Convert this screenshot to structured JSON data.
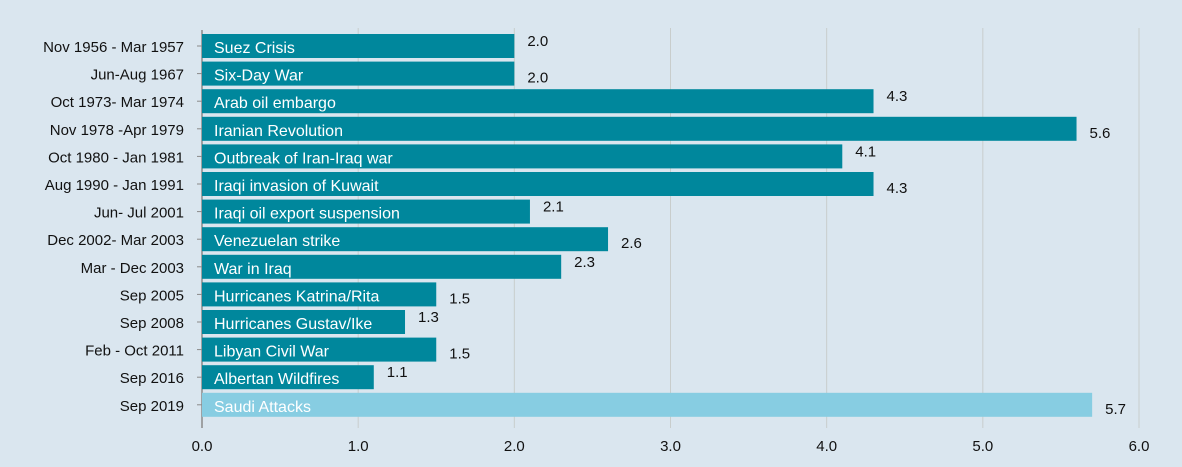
{
  "chart_data": {
    "type": "bar",
    "orientation": "horizontal",
    "categories": [
      "Nov 1956 - Mar 1957",
      "Jun-Aug 1967",
      "Oct 1973- Mar 1974",
      "Nov 1978 -Apr 1979",
      "Oct 1980 - Jan 1981",
      "Aug 1990 - Jan 1991",
      "Jun- Jul 2001",
      "Dec 2002- Mar 2003",
      "Mar - Dec 2003",
      "Sep 2005",
      "Sep 2008",
      "Feb - Oct 2011",
      "Sep 2016",
      "Sep 2019"
    ],
    "bar_labels": [
      "Suez Crisis",
      "Six-Day War",
      "Arab oil embargo",
      "Iranian Revolution",
      "Outbreak of Iran-Iraq war",
      "Iraqi invasion of Kuwait",
      "Iraqi oil export suspension",
      "Venezuelan strike",
      "War in Iraq",
      "Hurricanes Katrina/Rita",
      "Hurricanes Gustav/Ike",
      "Libyan Civil War",
      "Albertan Wildfires",
      "Saudi Attacks"
    ],
    "values": [
      2.0,
      2.0,
      4.3,
      5.6,
      4.1,
      4.3,
      2.1,
      2.6,
      2.3,
      1.5,
      1.3,
      1.5,
      1.1,
      5.7
    ],
    "value_labels": [
      "2.0",
      "2.0",
      "4.3",
      "5.6",
      "4.1",
      "4.3",
      "2.1",
      "2.6",
      "2.3",
      "1.5",
      "1.3",
      "1.5",
      "1.1",
      "5.7"
    ],
    "highlight_index": 13,
    "xlim": [
      0,
      6
    ],
    "x_ticks": [
      "0.0",
      "1.0",
      "2.0",
      "3.0",
      "4.0",
      "5.0",
      "6.0"
    ],
    "grid": true,
    "colors": {
      "bar": "#00879c",
      "highlight": "#87cde2",
      "background": "#dae6ef",
      "grid": "#c8cdcc",
      "text": "#111111",
      "bar_text": "#ffffff"
    }
  }
}
